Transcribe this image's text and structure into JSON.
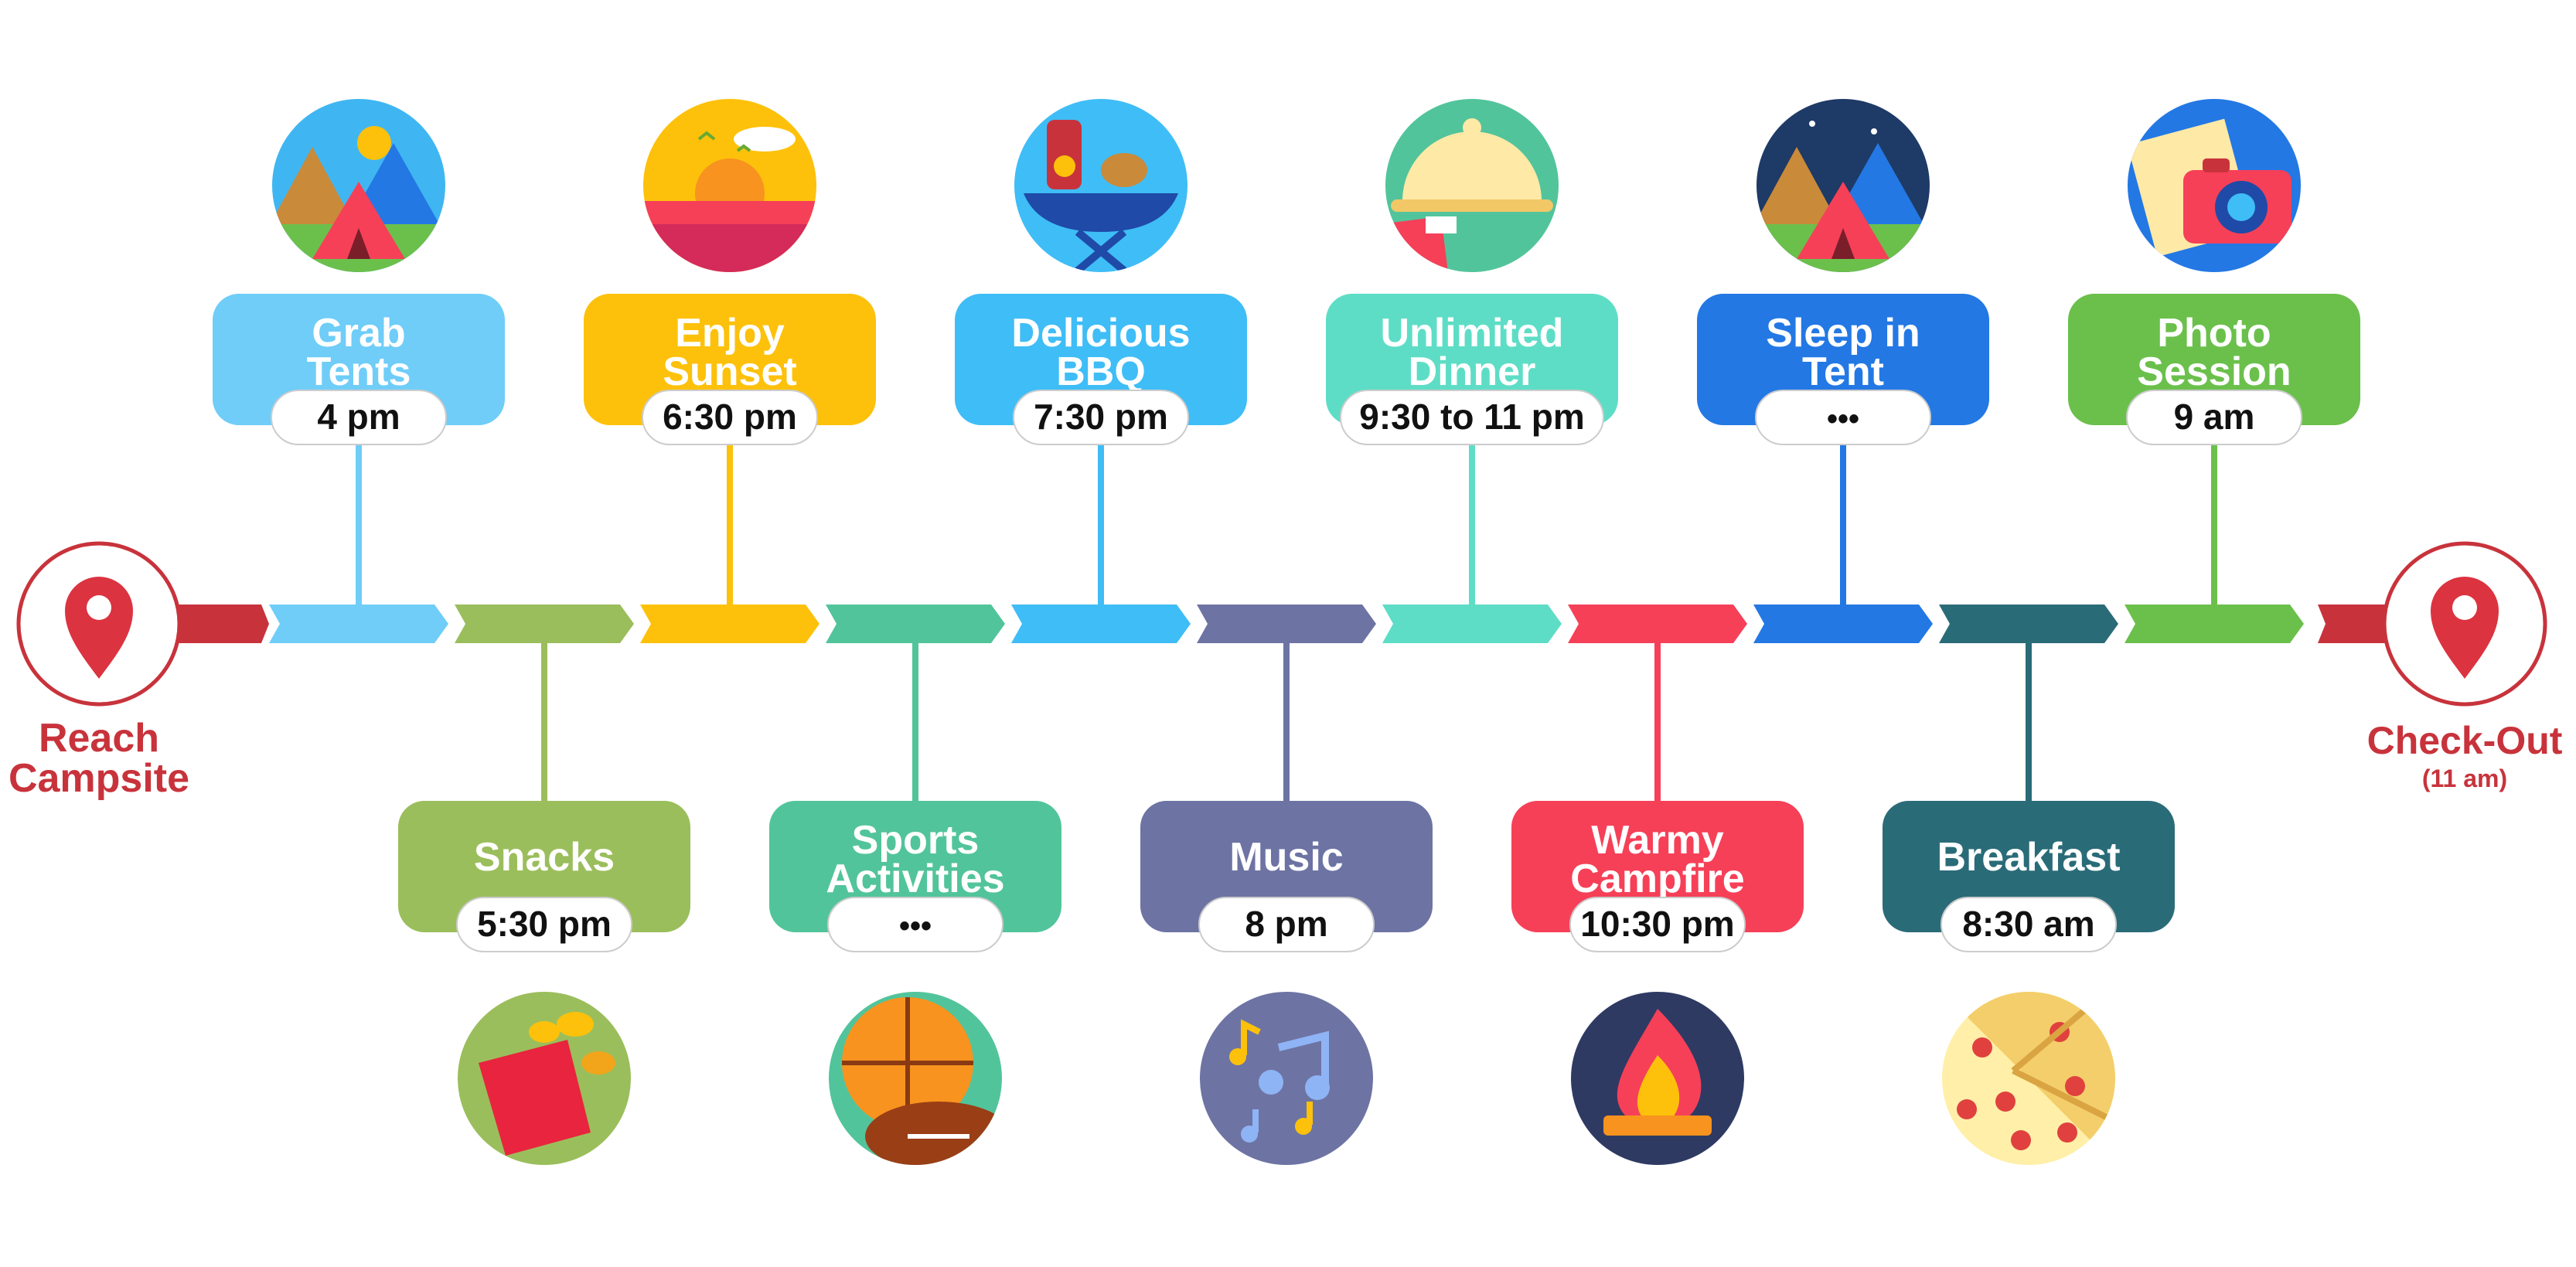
{
  "start": {
    "label_line1": "Reach",
    "label_line2": "Campsite",
    "icon": "map-pin-icon"
  },
  "end": {
    "label": "Check-Out",
    "sublabel": "(11 am)",
    "icon": "map-pin-icon"
  },
  "events": [
    {
      "id": "grab-tents",
      "lines": [
        "Grab",
        "Tents"
      ],
      "time": "4 pm",
      "color": "#6FCDF8",
      "side": "top",
      "icon": "tent-camp-icon"
    },
    {
      "id": "snacks",
      "lines": [
        "Snacks"
      ],
      "time": "5:30 pm",
      "color": "#9BBE5C",
      "side": "bottom",
      "icon": "chips-bag-icon"
    },
    {
      "id": "enjoy-sunset",
      "lines": [
        "Enjoy",
        "Sunset"
      ],
      "time": "6:30 pm",
      "color": "#FDC10B",
      "side": "top",
      "icon": "sunset-icon"
    },
    {
      "id": "sports-activities",
      "lines": [
        "Sports",
        "Activities"
      ],
      "time": "•••",
      "color": "#52C49B",
      "side": "bottom",
      "icon": "sports-balls-icon"
    },
    {
      "id": "delicious-bbq",
      "lines": [
        "Delicious",
        "BBQ"
      ],
      "time": "7:30 pm",
      "color": "#3FBDF6",
      "side": "top",
      "icon": "bbq-grill-icon"
    },
    {
      "id": "music",
      "lines": [
        "Music"
      ],
      "time": "8 pm",
      "color": "#6D74A3",
      "side": "bottom",
      "icon": "music-notes-icon"
    },
    {
      "id": "unlimited-dinner",
      "lines": [
        "Unlimited",
        "Dinner"
      ],
      "time": "9:30 to 11 pm",
      "color": "#5EDDC6",
      "side": "top",
      "icon": "dinner-cloche-icon"
    },
    {
      "id": "warmy-campfire",
      "lines": [
        "Warmy",
        "Campfire"
      ],
      "time": "10:30 pm",
      "color": "#F64058",
      "side": "bottom",
      "icon": "campfire-icon"
    },
    {
      "id": "sleep-in-tent",
      "lines": [
        "Sleep in",
        "Tent"
      ],
      "time": "•••",
      "color": "#2378E4",
      "side": "top",
      "icon": "tent-night-icon"
    },
    {
      "id": "breakfast",
      "lines": [
        "Breakfast"
      ],
      "time": "8:30 am",
      "color": "#2A6B78",
      "side": "bottom",
      "icon": "pizza-icon"
    },
    {
      "id": "photo-session",
      "lines": [
        "Photo",
        "Session"
      ],
      "time": "9 am",
      "color": "#6BC04C",
      "side": "top",
      "icon": "camera-icon"
    }
  ],
  "colors": {
    "accent_red": "#C8333B",
    "pin_red": "#DC3340"
  }
}
